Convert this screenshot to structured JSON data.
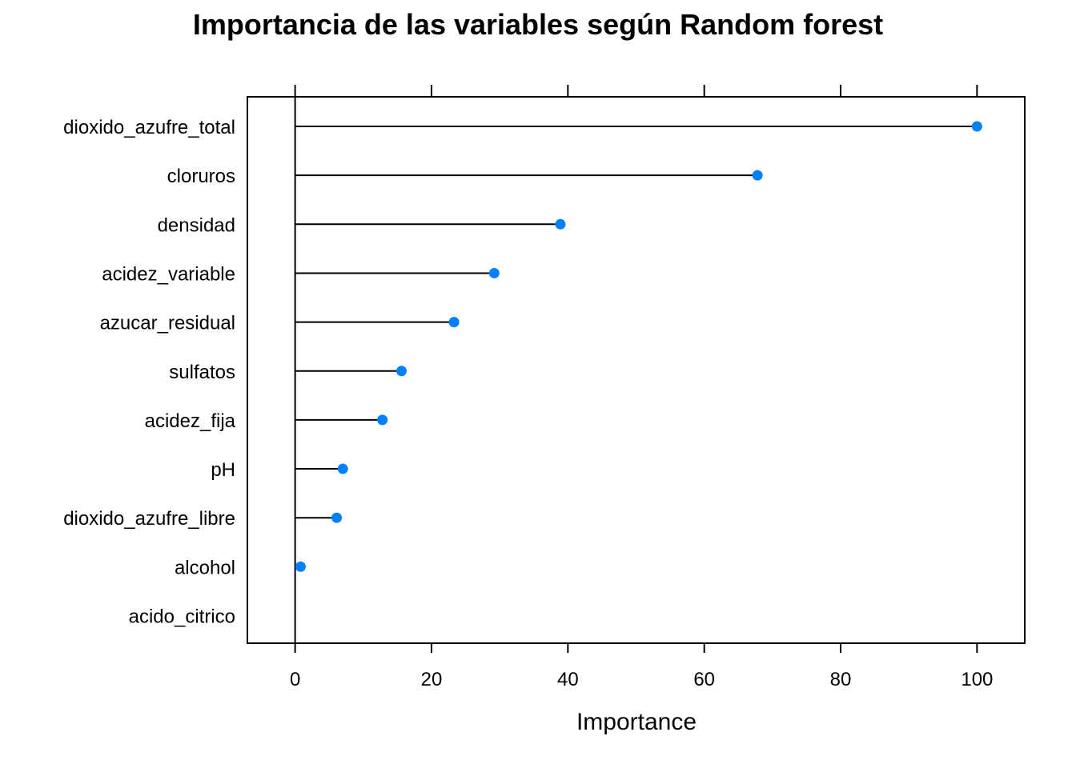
{
  "chart_data": {
    "type": "dot",
    "title": "Importancia de las variables según Random forest",
    "xlabel": "Importance",
    "ylabel": "",
    "xlim": [
      -7,
      107
    ],
    "xticks": [
      0,
      20,
      40,
      60,
      80,
      100
    ],
    "grid": false,
    "categories": [
      "dioxido_azufre_total",
      "cloruros",
      "densidad",
      "acidez_variable",
      "azucar_residual",
      "sulfatos",
      "acidez_fija",
      "pH",
      "dioxido_azufre_libre",
      "alcohol",
      "acido_citrico"
    ],
    "values": [
      100,
      67.8,
      38.9,
      29.2,
      23.3,
      15.6,
      12.8,
      7.0,
      6.1,
      0.8,
      0
    ],
    "marker_color": "#0080ff",
    "line_color": "#000000"
  }
}
